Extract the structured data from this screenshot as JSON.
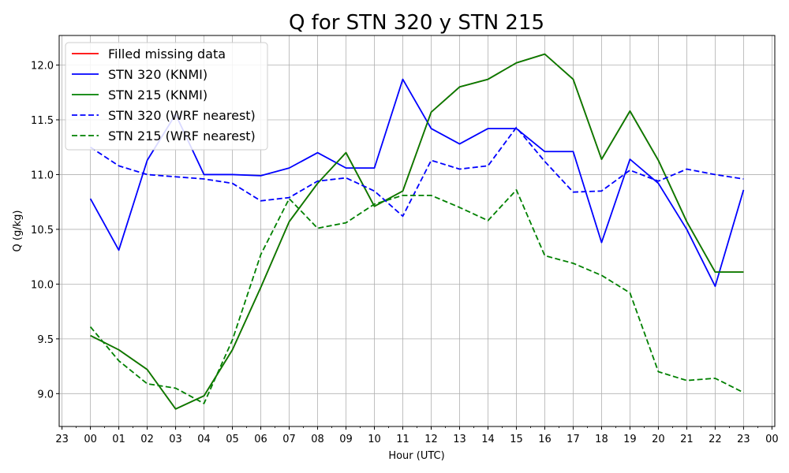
{
  "chart_data": {
    "type": "line",
    "title": "Q for STN 320 y STN 215",
    "xlabel": "Hour (UTC)",
    "ylabel": "Q (g/kg)",
    "xlim": [
      -1.1,
      24.1
    ],
    "ylim": [
      8.7,
      12.27
    ],
    "grid": true,
    "legend_position": "top-left",
    "x_tick_labels": [
      "23",
      "00",
      "01",
      "02",
      "03",
      "04",
      "05",
      "06",
      "07",
      "08",
      "09",
      "10",
      "11",
      "12",
      "13",
      "14",
      "15",
      "16",
      "17",
      "18",
      "19",
      "20",
      "21",
      "22",
      "23",
      "00"
    ],
    "x_tick_values": [
      -1,
      0,
      1,
      2,
      3,
      4,
      5,
      6,
      7,
      8,
      9,
      10,
      11,
      12,
      13,
      14,
      15,
      16,
      17,
      18,
      19,
      20,
      21,
      22,
      23,
      24
    ],
    "y_tick_labels": [
      "9.0",
      "9.5",
      "10.0",
      "10.5",
      "11.0",
      "11.5",
      "12.0"
    ],
    "y_tick_values": [
      9.0,
      9.5,
      10.0,
      10.5,
      11.0,
      11.5,
      12.0
    ],
    "x": [
      0,
      1,
      2,
      3,
      4,
      5,
      6,
      7,
      8,
      9,
      10,
      11,
      12,
      13,
      14,
      15,
      16,
      17,
      18,
      19,
      20,
      21,
      22,
      23
    ],
    "series": [
      {
        "name": "Filled missing data",
        "color": "#ff0000",
        "dash": "solid",
        "values": [
          9.53,
          9.4,
          9.22,
          8.86,
          8.98,
          9.4,
          9.97,
          10.57,
          10.92,
          11.2,
          10.71,
          10.85,
          11.57,
          11.8,
          11.87,
          12.02,
          12.1,
          11.87,
          11.14,
          11.58,
          11.13,
          10.57,
          10.11,
          10.11
        ]
      },
      {
        "name": "STN 320 (KNMI)",
        "color": "#0000ff",
        "dash": "solid",
        "values": [
          10.78,
          10.31,
          11.13,
          11.55,
          11.0,
          11.0,
          10.99,
          11.06,
          11.2,
          11.06,
          11.06,
          11.87,
          11.42,
          11.28,
          11.42,
          11.42,
          11.21,
          11.21,
          10.38,
          11.14,
          10.92,
          10.5,
          9.98,
          10.86
        ]
      },
      {
        "name": "STN 215 (KNMI)",
        "color": "#008000",
        "dash": "solid",
        "values": [
          9.53,
          9.4,
          9.22,
          8.86,
          8.98,
          9.4,
          9.97,
          10.57,
          10.92,
          11.2,
          10.71,
          10.85,
          11.57,
          11.8,
          11.87,
          12.02,
          12.1,
          11.87,
          11.14,
          11.58,
          11.13,
          10.57,
          10.11,
          10.11
        ]
      },
      {
        "name": "STN 320 (WRF nearest)",
        "color": "#0000ff",
        "dash": "dashed",
        "values": [
          11.25,
          11.08,
          11.0,
          10.98,
          10.96,
          10.92,
          10.76,
          10.79,
          10.94,
          10.97,
          10.85,
          10.62,
          11.13,
          11.05,
          11.08,
          11.43,
          11.12,
          10.84,
          10.85,
          11.04,
          10.94,
          11.05,
          11.0,
          10.96
        ]
      },
      {
        "name": "STN 215 (WRF nearest)",
        "color": "#008000",
        "dash": "dashed",
        "values": [
          9.61,
          9.3,
          9.09,
          9.05,
          8.91,
          9.49,
          10.27,
          10.78,
          10.51,
          10.56,
          10.73,
          10.81,
          10.81,
          10.7,
          10.58,
          10.86,
          10.26,
          10.19,
          10.08,
          9.92,
          9.2,
          9.12,
          9.14,
          9.01
        ]
      }
    ]
  }
}
